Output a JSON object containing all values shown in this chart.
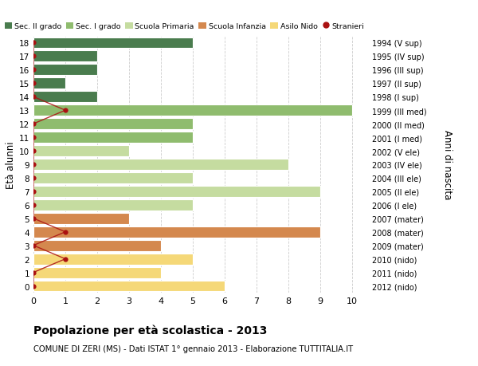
{
  "ages": [
    18,
    17,
    16,
    15,
    14,
    13,
    12,
    11,
    10,
    9,
    8,
    7,
    6,
    5,
    4,
    3,
    2,
    1,
    0
  ],
  "right_labels": [
    "1994 (V sup)",
    "1995 (IV sup)",
    "1996 (III sup)",
    "1997 (II sup)",
    "1998 (I sup)",
    "1999 (III med)",
    "2000 (II med)",
    "2001 (I med)",
    "2002 (V ele)",
    "2003 (IV ele)",
    "2004 (III ele)",
    "2005 (II ele)",
    "2006 (I ele)",
    "2007 (mater)",
    "2008 (mater)",
    "2009 (mater)",
    "2010 (nido)",
    "2011 (nido)",
    "2012 (nido)"
  ],
  "bar_values": [
    5,
    2,
    2,
    1,
    2,
    10,
    5,
    5,
    3,
    8,
    5,
    9,
    5,
    3,
    9,
    4,
    5,
    4,
    6
  ],
  "bar_colors": [
    "#4a7c4e",
    "#4a7c4e",
    "#4a7c4e",
    "#4a7c4e",
    "#4a7c4e",
    "#8fbc6e",
    "#8fbc6e",
    "#8fbc6e",
    "#c5dca0",
    "#c5dca0",
    "#c5dca0",
    "#c5dca0",
    "#c5dca0",
    "#d4884e",
    "#d4884e",
    "#d4884e",
    "#f5d878",
    "#f5d878",
    "#f5d878"
  ],
  "stranieri_ages": [
    18,
    17,
    16,
    15,
    14,
    13,
    12,
    11,
    10,
    9,
    8,
    7,
    6,
    5,
    4,
    3,
    2,
    1,
    0
  ],
  "stranieri_x": [
    0,
    0,
    0,
    0,
    0,
    1,
    0,
    0,
    0,
    0,
    0,
    0,
    0,
    0,
    1,
    0,
    1,
    0,
    0
  ],
  "xlabel_vals": [
    0,
    1,
    2,
    3,
    4,
    5,
    6,
    7,
    8,
    9,
    10
  ],
  "xlim": [
    0,
    10.5
  ],
  "ylim": [
    -0.5,
    18.5
  ],
  "title": "Popolazione per età scolastica - 2013",
  "subtitle": "COMUNE DI ZERI (MS) - Dati ISTAT 1° gennaio 2013 - Elaborazione TUTTITALIA.IT",
  "ylabel": "Età alunni",
  "right_ylabel": "Anni di nascita",
  "legend_items": [
    {
      "label": "Sec. II grado",
      "color": "#4a7c4e"
    },
    {
      "label": "Sec. I grado",
      "color": "#8fbc6e"
    },
    {
      "label": "Scuola Primaria",
      "color": "#c5dca0"
    },
    {
      "label": "Scuola Infanzia",
      "color": "#d4884e"
    },
    {
      "label": "Asilo Nido",
      "color": "#f5d878"
    },
    {
      "label": "Stranieri",
      "color": "#aa1111"
    }
  ],
  "bg_color": "#ffffff",
  "grid_color": "#cccccc",
  "bar_height": 0.82
}
